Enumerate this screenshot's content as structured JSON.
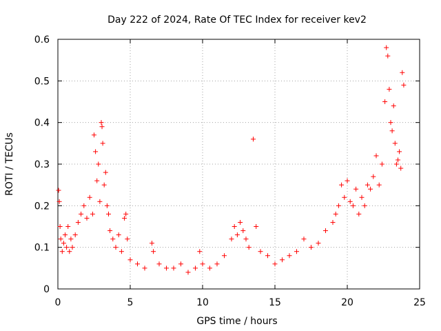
{
  "chart_data": {
    "type": "scatter",
    "title": "Day 222 of 2024, Rate Of TEC Index for receiver kev2",
    "xlabel": "GPS time / hours",
    "ylabel": "ROTI / TECUs",
    "xlim": [
      0,
      25
    ],
    "ylim": [
      0,
      0.6
    ],
    "xticks": [
      "0",
      "5",
      "10",
      "15",
      "20",
      "25"
    ],
    "yticks": [
      "0",
      "0.1",
      "0.2",
      "0.3",
      "0.4",
      "0.5",
      "0.6"
    ],
    "grid": true,
    "marker": "+",
    "marker_color": "#ff0000",
    "series": [
      {
        "name": "ROTI",
        "x": [
          0.05,
          0.1,
          0.15,
          0.2,
          0.3,
          0.4,
          0.5,
          0.6,
          0.7,
          0.8,
          0.9,
          1.0,
          1.2,
          1.4,
          1.6,
          1.8,
          2.0,
          2.2,
          2.4,
          2.5,
          2.6,
          2.7,
          2.8,
          2.9,
          3.0,
          3.05,
          3.1,
          3.2,
          3.3,
          3.4,
          3.5,
          3.6,
          3.8,
          4.0,
          4.2,
          4.4,
          4.6,
          4.7,
          4.8,
          5.0,
          5.5,
          6.0,
          6.5,
          6.6,
          7.0,
          7.5,
          8.0,
          8.5,
          9.0,
          9.5,
          9.8,
          10.0,
          10.5,
          11.0,
          11.5,
          12.0,
          12.2,
          12.4,
          12.6,
          12.8,
          13.0,
          13.2,
          13.5,
          13.7,
          14.0,
          14.5,
          15.0,
          15.5,
          16.0,
          16.5,
          17.0,
          17.5,
          18.0,
          18.5,
          19.0,
          19.2,
          19.4,
          19.6,
          19.8,
          20.0,
          20.2,
          20.4,
          20.6,
          20.8,
          21.0,
          21.2,
          21.4,
          21.6,
          21.8,
          22.0,
          22.2,
          22.4,
          22.6,
          22.7,
          22.8,
          22.9,
          23.0,
          23.1,
          23.2,
          23.3,
          23.4,
          23.5,
          23.6,
          23.7,
          23.8,
          23.9
        ],
        "values": [
          0.237,
          0.21,
          0.15,
          0.12,
          0.09,
          0.11,
          0.13,
          0.1,
          0.15,
          0.09,
          0.12,
          0.1,
          0.13,
          0.16,
          0.18,
          0.2,
          0.17,
          0.22,
          0.18,
          0.37,
          0.33,
          0.26,
          0.3,
          0.21,
          0.4,
          0.39,
          0.35,
          0.25,
          0.28,
          0.2,
          0.18,
          0.14,
          0.12,
          0.1,
          0.13,
          0.09,
          0.17,
          0.18,
          0.12,
          0.07,
          0.06,
          0.05,
          0.11,
          0.09,
          0.06,
          0.05,
          0.05,
          0.06,
          0.04,
          0.05,
          0.09,
          0.06,
          0.05,
          0.06,
          0.08,
          0.12,
          0.15,
          0.13,
          0.16,
          0.14,
          0.12,
          0.1,
          0.36,
          0.15,
          0.09,
          0.08,
          0.06,
          0.07,
          0.08,
          0.09,
          0.12,
          0.1,
          0.11,
          0.14,
          0.16,
          0.18,
          0.2,
          0.25,
          0.22,
          0.26,
          0.21,
          0.2,
          0.24,
          0.18,
          0.22,
          0.2,
          0.25,
          0.24,
          0.27,
          0.32,
          0.25,
          0.3,
          0.45,
          0.58,
          0.56,
          0.48,
          0.4,
          0.38,
          0.44,
          0.35,
          0.3,
          0.31,
          0.33,
          0.29,
          0.52,
          0.49
        ]
      }
    ]
  }
}
